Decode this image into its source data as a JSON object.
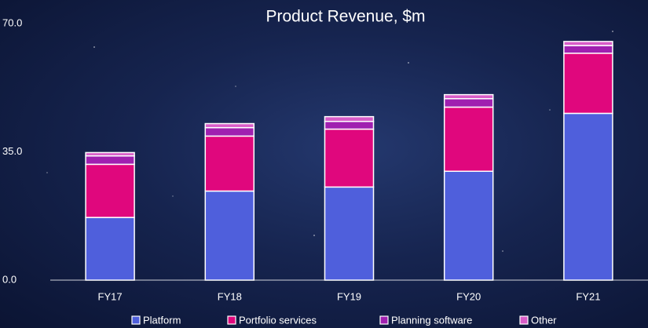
{
  "chart_data": {
    "type": "stacked_bar",
    "title": "Product Revenue, $m",
    "categories": [
      "FY17",
      "FY18",
      "FY19",
      "FY20",
      "FY21"
    ],
    "series": [
      {
        "name": "Platform",
        "color": "#4f5fdc",
        "values": [
          17.1,
          24.3,
          25.4,
          29.7,
          45.5
        ]
      },
      {
        "name": "Portfolio services",
        "color": "#e0077d",
        "values": [
          14.5,
          15.0,
          15.8,
          17.5,
          16.4
        ]
      },
      {
        "name": "Planning software",
        "color": "#a020b0",
        "values": [
          2.3,
          2.3,
          2.1,
          2.3,
          2.1
        ]
      },
      {
        "name": "Other",
        "color": "#d85cc8",
        "values": [
          0.9,
          1.1,
          1.3,
          1.1,
          1.1
        ]
      }
    ],
    "ylim": [
      0,
      70
    ],
    "yticks": [
      {
        "value": 0,
        "label": "0.0"
      },
      {
        "value": 35,
        "label": "35.0"
      },
      {
        "value": 70,
        "label": "70.0"
      }
    ],
    "legend": "bottom"
  }
}
